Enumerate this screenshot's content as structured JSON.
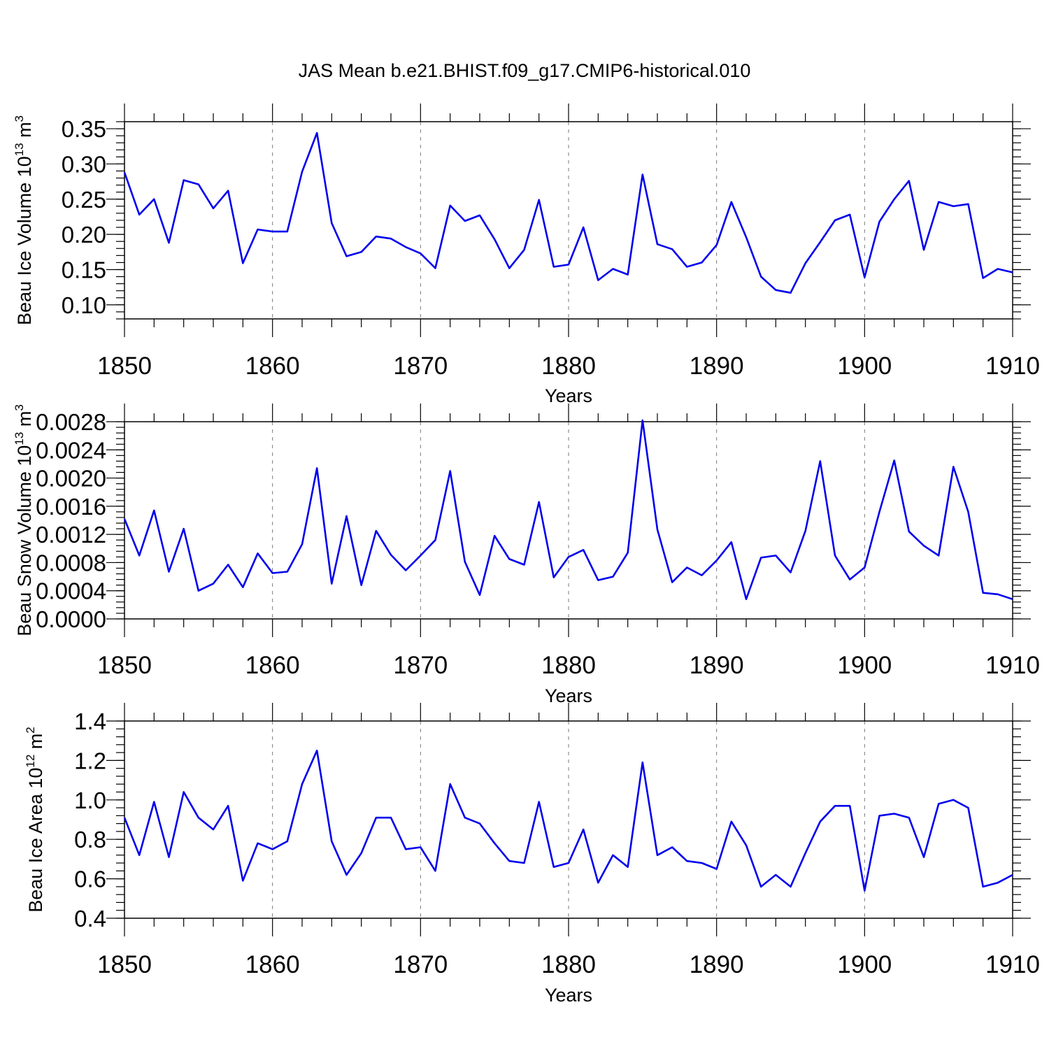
{
  "title": "JAS Mean b.e21.BHIST.f09_g17.CMIP6-historical.010",
  "colors": {
    "line": "#0000ee",
    "grid": "#7a7a7a",
    "frame": "#000000"
  },
  "chart_data": [
    {
      "type": "line",
      "xlabel": "Years",
      "ylabel": "Beau Ice Volume 10",
      "ylabel_exp": "13",
      "ylabel_unit": " m",
      "ylabel_unit_exp": "3",
      "xlim": [
        1850,
        1910
      ],
      "ylim": [
        0.08,
        0.36
      ],
      "x_ticks": [
        1850,
        1860,
        1870,
        1880,
        1890,
        1900,
        1910
      ],
      "y_ticks": [
        0.1,
        0.15,
        0.2,
        0.25,
        0.3,
        0.35
      ],
      "y_tick_labels": [
        "0.10",
        "0.15",
        "0.20",
        "0.25",
        "0.30",
        "0.35"
      ],
      "grid": "vertical dashed",
      "x": [
        1850,
        1851,
        1852,
        1853,
        1854,
        1855,
        1856,
        1857,
        1858,
        1859,
        1860,
        1861,
        1862,
        1863,
        1864,
        1865,
        1866,
        1867,
        1868,
        1869,
        1870,
        1871,
        1872,
        1873,
        1874,
        1875,
        1876,
        1877,
        1878,
        1879,
        1880,
        1881,
        1882,
        1883,
        1884,
        1885,
        1886,
        1887,
        1888,
        1889,
        1890,
        1891,
        1892,
        1893,
        1894,
        1895,
        1896,
        1897,
        1898,
        1899,
        1900,
        1901,
        1902,
        1903,
        1904,
        1905,
        1906,
        1907,
        1908,
        1909,
        1910
      ],
      "values": [
        0.288,
        0.228,
        0.25,
        0.188,
        0.277,
        0.271,
        0.237,
        0.262,
        0.159,
        0.207,
        0.204,
        0.204,
        0.289,
        0.344,
        0.216,
        0.169,
        0.175,
        0.197,
        0.194,
        0.182,
        0.173,
        0.152,
        0.241,
        0.219,
        0.227,
        0.193,
        0.152,
        0.178,
        0.249,
        0.154,
        0.157,
        0.21,
        0.135,
        0.151,
        0.143,
        0.285,
        0.186,
        0.179,
        0.154,
        0.16,
        0.185,
        0.246,
        0.196,
        0.14,
        0.121,
        0.117,
        0.159,
        0.189,
        0.22,
        0.228,
        0.139,
        0.218,
        0.25,
        0.276,
        0.178,
        0.246,
        0.24,
        0.243,
        0.138,
        0.151,
        0.146
      ]
    },
    {
      "type": "line",
      "xlabel": "Years",
      "ylabel": "Beau Snow Volume 10",
      "ylabel_exp": "13",
      "ylabel_unit": " m",
      "ylabel_unit_exp": "3",
      "xlim": [
        1850,
        1910
      ],
      "ylim": [
        0.0,
        0.0028
      ],
      "x_ticks": [
        1850,
        1860,
        1870,
        1880,
        1890,
        1900,
        1910
      ],
      "y_ticks": [
        0.0,
        0.0004,
        0.0008,
        0.0012,
        0.0016,
        0.002,
        0.0024,
        0.0028
      ],
      "y_tick_labels": [
        "0.0000",
        "0.0004",
        "0.0008",
        "0.0012",
        "0.0016",
        "0.0020",
        "0.0024",
        "0.0028"
      ],
      "grid": "vertical dashed",
      "x": [
        1850,
        1851,
        1852,
        1853,
        1854,
        1855,
        1856,
        1857,
        1858,
        1859,
        1860,
        1861,
        1862,
        1863,
        1864,
        1865,
        1866,
        1867,
        1868,
        1869,
        1870,
        1871,
        1872,
        1873,
        1874,
        1875,
        1876,
        1877,
        1878,
        1879,
        1880,
        1881,
        1882,
        1883,
        1884,
        1885,
        1886,
        1887,
        1888,
        1889,
        1890,
        1891,
        1892,
        1893,
        1894,
        1895,
        1896,
        1897,
        1898,
        1899,
        1900,
        1901,
        1902,
        1903,
        1904,
        1905,
        1906,
        1907,
        1908,
        1909,
        1910
      ],
      "values": [
        0.00142,
        0.0009,
        0.00154,
        0.00067,
        0.00128,
        0.0004,
        0.0005,
        0.00077,
        0.00045,
        0.00093,
        0.00065,
        0.00067,
        0.00106,
        0.00214,
        0.0005,
        0.00146,
        0.00048,
        0.00125,
        0.00091,
        0.00069,
        0.0009,
        0.00112,
        0.0021,
        0.00081,
        0.00034,
        0.00118,
        0.00085,
        0.00077,
        0.00166,
        0.00059,
        0.00088,
        0.00098,
        0.00055,
        0.0006,
        0.00094,
        0.00282,
        0.00127,
        0.00052,
        0.00073,
        0.00062,
        0.00083,
        0.00109,
        0.00028,
        0.00087,
        0.0009,
        0.00066,
        0.00125,
        0.00224,
        0.0009,
        0.00056,
        0.00073,
        0.00152,
        0.00225,
        0.00124,
        0.00104,
        0.0009,
        0.00216,
        0.00152,
        0.00037,
        0.00035,
        0.00028
      ]
    },
    {
      "type": "line",
      "xlabel": "Years",
      "ylabel": "Beau Ice Area 10",
      "ylabel_exp": "12",
      "ylabel_unit": " m",
      "ylabel_unit_exp": "2",
      "xlim": [
        1850,
        1910
      ],
      "ylim": [
        0.4,
        1.4
      ],
      "x_ticks": [
        1850,
        1860,
        1870,
        1880,
        1890,
        1900,
        1910
      ],
      "y_ticks": [
        0.4,
        0.6,
        0.8,
        1.0,
        1.2,
        1.4
      ],
      "y_tick_labels": [
        "0.4",
        "0.6",
        "0.8",
        "1.0",
        "1.2",
        "1.4"
      ],
      "grid": "vertical dashed",
      "x": [
        1850,
        1851,
        1852,
        1853,
        1854,
        1855,
        1856,
        1857,
        1858,
        1859,
        1860,
        1861,
        1862,
        1863,
        1864,
        1865,
        1866,
        1867,
        1868,
        1869,
        1870,
        1871,
        1872,
        1873,
        1874,
        1875,
        1876,
        1877,
        1878,
        1879,
        1880,
        1881,
        1882,
        1883,
        1884,
        1885,
        1886,
        1887,
        1888,
        1889,
        1890,
        1891,
        1892,
        1893,
        1894,
        1895,
        1896,
        1897,
        1898,
        1899,
        1900,
        1901,
        1902,
        1903,
        1904,
        1905,
        1906,
        1907,
        1908,
        1909,
        1910
      ],
      "values": [
        0.91,
        0.72,
        0.99,
        0.71,
        1.04,
        0.91,
        0.85,
        0.97,
        0.59,
        0.78,
        0.75,
        0.79,
        1.08,
        1.25,
        0.79,
        0.62,
        0.73,
        0.91,
        0.91,
        0.75,
        0.76,
        0.64,
        1.08,
        0.91,
        0.88,
        0.78,
        0.69,
        0.68,
        0.99,
        0.66,
        0.68,
        0.85,
        0.58,
        0.72,
        0.66,
        1.19,
        0.72,
        0.76,
        0.69,
        0.68,
        0.65,
        0.89,
        0.77,
        0.56,
        0.62,
        0.56,
        0.73,
        0.89,
        0.97,
        0.97,
        0.54,
        0.92,
        0.93,
        0.91,
        0.71,
        0.98,
        1.0,
        0.96,
        0.56,
        0.58,
        0.62
      ]
    }
  ]
}
